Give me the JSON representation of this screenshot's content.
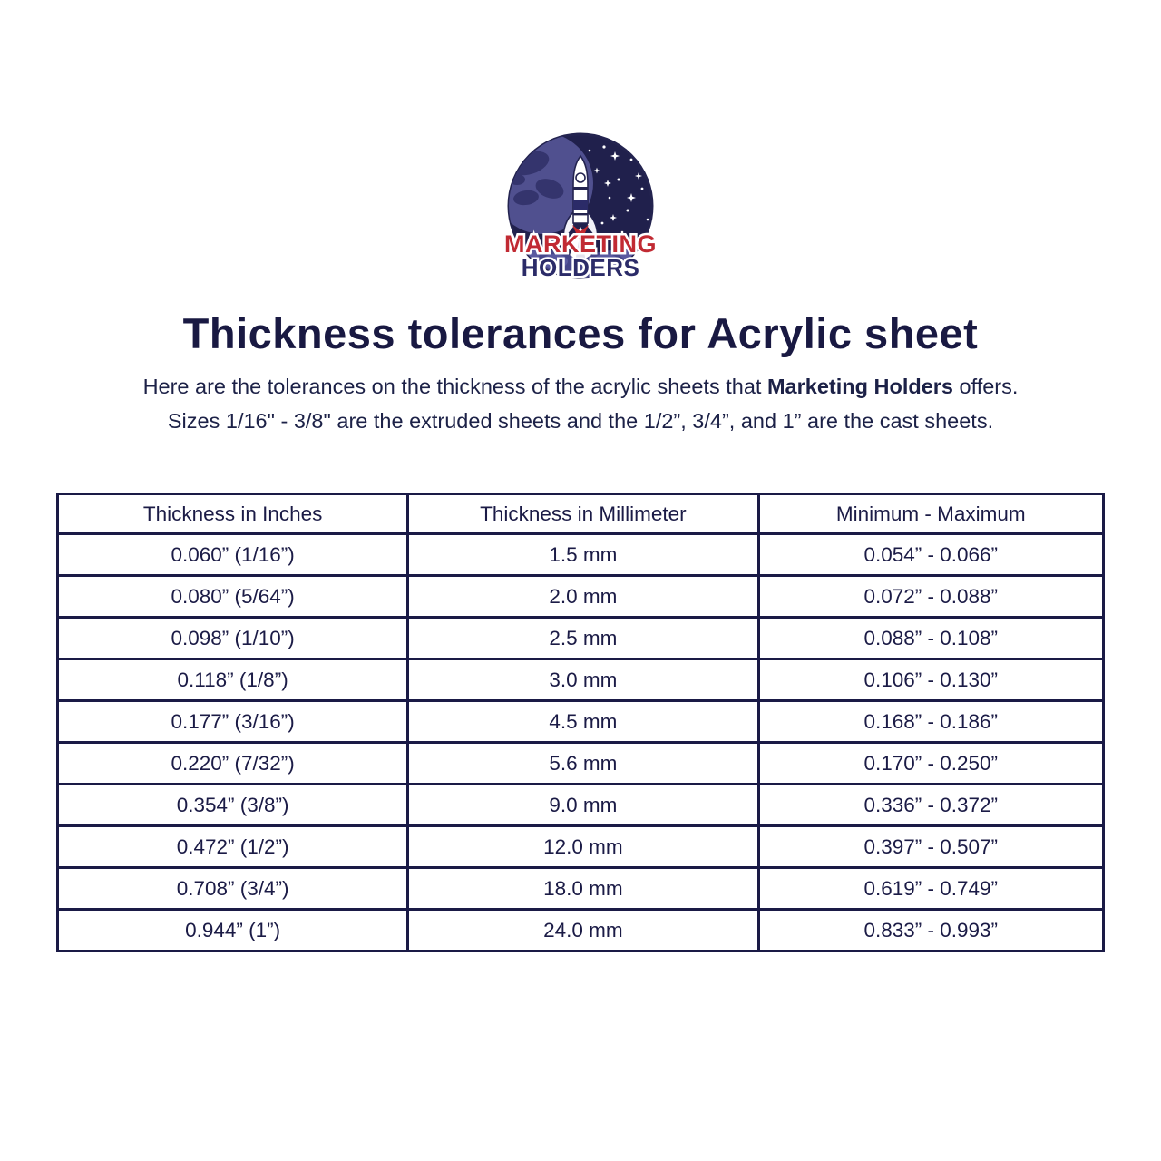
{
  "logo": {
    "line1": "MARKETING",
    "line2": "HOLDERS"
  },
  "title": "Thickness tolerances for Acrylic sheet",
  "intro": {
    "line1_prefix": "Here are the tolerances on the thickness of the acrylic sheets that ",
    "line1_bold": "Marketing Holders",
    "line1_suffix": " offers.",
    "line2": "Sizes 1/16\" - 3/8\" are the extruded sheets and the 1/2”, 3/4”, and 1” are the cast sheets."
  },
  "table": {
    "headers": [
      "Thickness in Inches",
      "Thickness in Millimeter",
      "Minimum - Maximum"
    ],
    "rows": [
      [
        "0.060” (1/16”)",
        "1.5 mm",
        "0.054” - 0.066”"
      ],
      [
        "0.080” (5/64”)",
        "2.0 mm",
        "0.072” - 0.088”"
      ],
      [
        "0.098” (1/10”)",
        "2.5 mm",
        "0.088” - 0.108”"
      ],
      [
        "0.118” (1/8”)",
        "3.0 mm",
        "0.106” - 0.130”"
      ],
      [
        "0.177” (3/16”)",
        "4.5 mm",
        "0.168” - 0.186”"
      ],
      [
        "0.220” (7/32”)",
        "5.6 mm",
        "0.170” - 0.250”"
      ],
      [
        "0.354” (3/8”)",
        "9.0 mm",
        "0.336” - 0.372”"
      ],
      [
        "0.472” (1/2”)",
        "12.0 mm",
        "0.397” - 0.507”"
      ],
      [
        "0.708” (3/4”)",
        "18.0 mm",
        "0.619” - 0.749”"
      ],
      [
        "0.944” (1”)",
        "24.0 mm",
        "0.833” - 0.993”"
      ]
    ]
  },
  "colors": {
    "text_navy": "#1b1b46",
    "border_navy": "#1a1a46",
    "logo_red": "#c12a33",
    "logo_navy": "#2b2b68",
    "logo_space": "#20204c",
    "logo_planet": "#50508f",
    "background": "#ffffff"
  }
}
